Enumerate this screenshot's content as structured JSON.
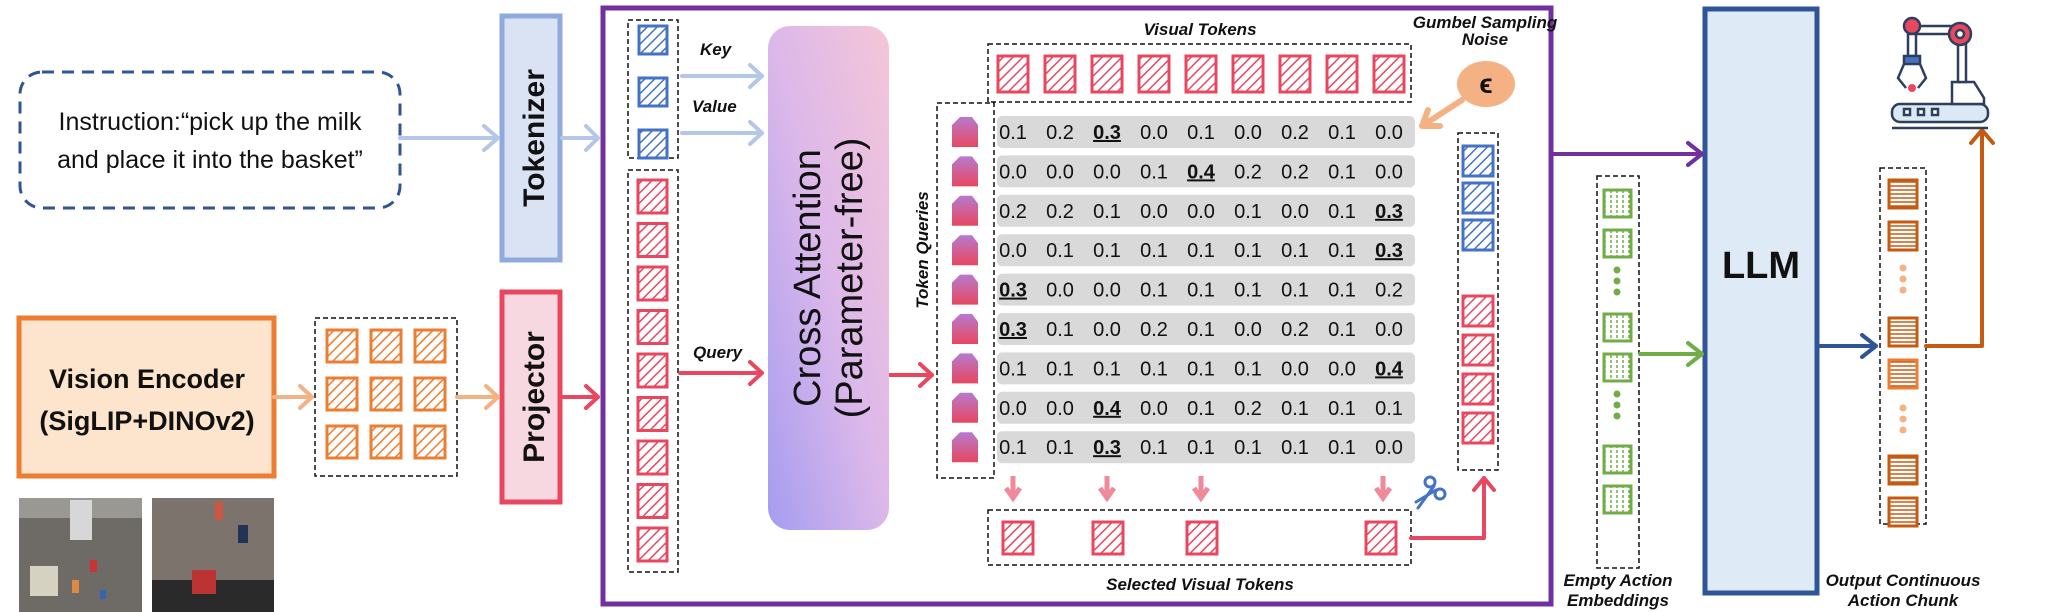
{
  "instruction": {
    "line1": "Instruction:“pick up the milk",
    "line2": "and place it into the basket”"
  },
  "tokenizer": "Tokenizer",
  "projector": "Projector",
  "vision_encoder": {
    "line1": "Vision Encoder",
    "line2": "(SigLIP+DINOv2)"
  },
  "cross_attention": {
    "line1": "Cross Attention",
    "line2": "(Parameter-free)"
  },
  "labels": {
    "key": "Key",
    "value": "Value",
    "query": "Query",
    "token_queries": "Token Queries",
    "visual_tokens": "Visual Tokens",
    "selected_visual_tokens": "Selected Visual Tokens",
    "gumbel_line1": "Gumbel Sampling",
    "gumbel_line2": "Noise",
    "epsilon": "ϵ",
    "empty_action_line1": "Empty Action",
    "empty_action_line2": "Embeddings",
    "output_line1": "Output Continuous",
    "output_line2": "Action Chunk"
  },
  "llm": "LLM",
  "attention_matrix": {
    "rows": [
      [
        "0.1",
        "0.2",
        "0.3",
        "0.0",
        "0.1",
        "0.0",
        "0.2",
        "0.1",
        "0.0"
      ],
      [
        "0.0",
        "0.0",
        "0.0",
        "0.1",
        "0.4",
        "0.2",
        "0.2",
        "0.1",
        "0.0"
      ],
      [
        "0.2",
        "0.2",
        "0.1",
        "0.0",
        "0.0",
        "0.1",
        "0.0",
        "0.1",
        "0.3"
      ],
      [
        "0.0",
        "0.1",
        "0.1",
        "0.1",
        "0.1",
        "0.1",
        "0.1",
        "0.1",
        "0.3"
      ],
      [
        "0.3",
        "0.0",
        "0.0",
        "0.1",
        "0.1",
        "0.1",
        "0.1",
        "0.1",
        "0.2"
      ],
      [
        "0.3",
        "0.1",
        "0.0",
        "0.2",
        "0.1",
        "0.0",
        "0.2",
        "0.1",
        "0.0"
      ],
      [
        "0.1",
        "0.1",
        "0.1",
        "0.1",
        "0.1",
        "0.1",
        "0.0",
        "0.0",
        "0.4"
      ],
      [
        "0.0",
        "0.0",
        "0.4",
        "0.0",
        "0.1",
        "0.2",
        "0.1",
        "0.1",
        "0.1"
      ],
      [
        "0.1",
        "0.1",
        "0.3",
        "0.1",
        "0.1",
        "0.1",
        "0.1",
        "0.1",
        "0.0"
      ]
    ],
    "highlighted_column_per_row": [
      2,
      4,
      8,
      8,
      0,
      0,
      8,
      2,
      2
    ],
    "selected_columns": [
      0,
      2,
      4,
      8
    ]
  },
  "icons": [
    "scissors-icon",
    "robot-arm-icon",
    "epsilon-noise-icon"
  ],
  "colors": {
    "text_token": "#4472c4",
    "visual_token": "#e8475f",
    "encoder": "#ed7d31",
    "action_embedding": "#70ad47",
    "output_action": "#c55a11",
    "module_frame": "#7030a0",
    "llm": "#2f5597"
  }
}
